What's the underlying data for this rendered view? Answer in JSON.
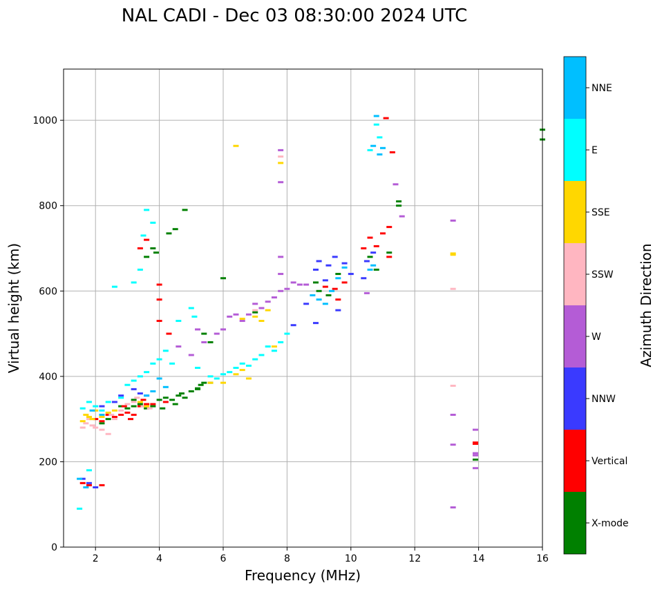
{
  "chart_data": {
    "type": "scatter",
    "title": "NAL CADI - Dec 03 08:30:00 2024 UTC",
    "xlabel": "Frequency (MHz)",
    "ylabel": "Virtual height (km)",
    "xlim": [
      1,
      16
    ],
    "ylim": [
      0,
      1120
    ],
    "xticks": [
      2,
      4,
      6,
      8,
      10,
      12,
      14,
      16
    ],
    "yticks": [
      0,
      200,
      400,
      600,
      800,
      1000
    ],
    "grid": true,
    "colorbar": {
      "label": "Azimuth Direction",
      "categories": [
        {
          "name": "X-mode",
          "color": "#008000"
        },
        {
          "name": "Vertical",
          "color": "#ff0000"
        },
        {
          "name": "NNW",
          "color": "#3a3aff"
        },
        {
          "name": "W",
          "color": "#b45cd6"
        },
        {
          "name": "SSW",
          "color": "#ffb6c1"
        },
        {
          "name": "SSE",
          "color": "#ffd700"
        },
        {
          "name": "E",
          "color": "#00ffff"
        },
        {
          "name": "NNE",
          "color": "#00bfff"
        }
      ]
    },
    "series": [
      {
        "name": "X-mode",
        "points": [
          [
            2.8,
            330
          ],
          [
            3.0,
            325
          ],
          [
            3.2,
            330
          ],
          [
            3.4,
            335
          ],
          [
            3.6,
            325
          ],
          [
            3.8,
            330
          ],
          [
            4.0,
            345
          ],
          [
            4.2,
            350
          ],
          [
            4.4,
            345
          ],
          [
            4.6,
            355
          ],
          [
            4.8,
            350
          ],
          [
            5.0,
            365
          ],
          [
            5.2,
            372
          ],
          [
            5.3,
            380
          ],
          [
            5.4,
            385
          ],
          [
            5.6,
            385
          ],
          [
            4.1,
            325
          ],
          [
            4.5,
            335
          ],
          [
            3.6,
            680
          ],
          [
            3.8,
            700
          ],
          [
            3.9,
            690
          ],
          [
            4.3,
            735
          ],
          [
            4.5,
            745
          ],
          [
            4.8,
            790
          ],
          [
            5.4,
            500
          ],
          [
            5.6,
            480
          ],
          [
            6.0,
            630
          ],
          [
            7.0,
            550
          ],
          [
            8.9,
            620
          ],
          [
            9.0,
            600
          ],
          [
            9.3,
            590
          ],
          [
            9.6,
            640
          ],
          [
            10.6,
            680
          ],
          [
            10.8,
            650
          ],
          [
            11.2,
            690
          ],
          [
            11.5,
            800
          ],
          [
            11.5,
            810
          ],
          [
            13.9,
            205
          ],
          [
            16.0,
            978
          ],
          [
            16.0,
            955
          ],
          [
            2.4,
            300
          ],
          [
            2.2,
            290
          ],
          [
            3.2,
            345
          ],
          [
            4.7,
            360
          ],
          [
            5.2,
            370
          ]
        ]
      },
      {
        "name": "Vertical",
        "points": [
          [
            1.6,
            150
          ],
          [
            1.8,
            145
          ],
          [
            2.2,
            145
          ],
          [
            2.0,
            300
          ],
          [
            2.2,
            295
          ],
          [
            2.4,
            310
          ],
          [
            2.6,
            305
          ],
          [
            2.8,
            310
          ],
          [
            3.0,
            315
          ],
          [
            3.2,
            310
          ],
          [
            3.4,
            330
          ],
          [
            3.6,
            335
          ],
          [
            3.8,
            335
          ],
          [
            3.5,
            345
          ],
          [
            3.4,
            700
          ],
          [
            3.6,
            720
          ],
          [
            4.0,
            615
          ],
          [
            4.0,
            580
          ],
          [
            4.0,
            530
          ],
          [
            4.2,
            340
          ],
          [
            4.3,
            500
          ],
          [
            9.2,
            610
          ],
          [
            9.5,
            605
          ],
          [
            9.8,
            620
          ],
          [
            9.6,
            580
          ],
          [
            10.4,
            700
          ],
          [
            10.6,
            725
          ],
          [
            10.8,
            705
          ],
          [
            11.1,
            1005
          ],
          [
            11.3,
            925
          ],
          [
            11.2,
            750
          ],
          [
            11.0,
            735
          ],
          [
            11.2,
            680
          ],
          [
            13.9,
            245
          ],
          [
            13.9,
            242
          ],
          [
            2.9,
            330
          ],
          [
            3.1,
            300
          ]
        ]
      },
      {
        "name": "NNW",
        "points": [
          [
            1.6,
            160
          ],
          [
            1.8,
            150
          ],
          [
            2.0,
            140
          ],
          [
            2.2,
            330
          ],
          [
            2.6,
            340
          ],
          [
            3.4,
            360
          ],
          [
            3.6,
            355
          ],
          [
            8.9,
            650
          ],
          [
            9.0,
            670
          ],
          [
            9.2,
            625
          ],
          [
            9.3,
            660
          ],
          [
            9.5,
            680
          ],
          [
            9.8,
            665
          ],
          [
            10.0,
            640
          ],
          [
            10.4,
            630
          ],
          [
            10.5,
            670
          ],
          [
            10.7,
            690
          ],
          [
            8.6,
            570
          ],
          [
            8.2,
            520
          ],
          [
            8.9,
            525
          ],
          [
            9.6,
            555
          ],
          [
            2.8,
            355
          ],
          [
            3.2,
            370
          ]
        ]
      },
      {
        "name": "W",
        "points": [
          [
            4.6,
            470
          ],
          [
            5.0,
            450
          ],
          [
            5.4,
            480
          ],
          [
            5.8,
            500
          ],
          [
            6.0,
            510
          ],
          [
            6.2,
            540
          ],
          [
            6.4,
            545
          ],
          [
            6.8,
            545
          ],
          [
            7.0,
            570
          ],
          [
            7.2,
            560
          ],
          [
            7.4,
            575
          ],
          [
            7.6,
            585
          ],
          [
            7.8,
            600
          ],
          [
            8.0,
            605
          ],
          [
            8.2,
            620
          ],
          [
            8.4,
            615
          ],
          [
            8.6,
            615
          ],
          [
            7.8,
            640
          ],
          [
            7.8,
            680
          ],
          [
            7.8,
            930
          ],
          [
            7.8,
            855
          ],
          [
            10.5,
            595
          ],
          [
            11.4,
            850
          ],
          [
            11.6,
            775
          ],
          [
            13.2,
            765
          ],
          [
            13.2,
            310
          ],
          [
            13.2,
            240
          ],
          [
            13.2,
            93
          ],
          [
            13.9,
            275
          ],
          [
            13.9,
            220
          ],
          [
            13.9,
            215
          ],
          [
            13.9,
            185
          ],
          [
            5.2,
            510
          ],
          [
            6.6,
            530
          ]
        ]
      },
      {
        "name": "SSW",
        "points": [
          [
            1.6,
            280
          ],
          [
            1.7,
            290
          ],
          [
            1.8,
            300
          ],
          [
            1.9,
            285
          ],
          [
            2.0,
            280
          ],
          [
            2.2,
            275
          ],
          [
            2.4,
            265
          ],
          [
            2.6,
            300
          ],
          [
            2.8,
            320
          ],
          [
            3.0,
            335
          ],
          [
            3.2,
            340
          ],
          [
            3.3,
            350
          ],
          [
            3.5,
            330
          ],
          [
            13.2,
            605
          ],
          [
            13.2,
            378
          ],
          [
            7.8,
            915
          ],
          [
            7.0,
            555
          ],
          [
            2.5,
            310
          ],
          [
            3.7,
            325
          ]
        ]
      },
      {
        "name": "SSE",
        "points": [
          [
            1.6,
            295
          ],
          [
            1.7,
            310
          ],
          [
            1.8,
            305
          ],
          [
            1.9,
            300
          ],
          [
            2.0,
            320
          ],
          [
            2.2,
            305
          ],
          [
            2.4,
            315
          ],
          [
            2.6,
            320
          ],
          [
            3.4,
            340
          ],
          [
            3.6,
            330
          ],
          [
            5.6,
            385
          ],
          [
            6.0,
            385
          ],
          [
            6.4,
            405
          ],
          [
            6.6,
            415
          ],
          [
            6.8,
            395
          ],
          [
            6.6,
            535
          ],
          [
            7.0,
            540
          ],
          [
            7.2,
            530
          ],
          [
            7.4,
            555
          ],
          [
            6.4,
            940
          ],
          [
            7.8,
            900
          ],
          [
            13.2,
            685
          ],
          [
            13.2,
            688
          ],
          [
            7.6,
            470
          ]
        ]
      },
      {
        "name": "E",
        "points": [
          [
            1.5,
            90
          ],
          [
            1.8,
            180
          ],
          [
            1.6,
            325
          ],
          [
            1.8,
            340
          ],
          [
            2.0,
            330
          ],
          [
            2.2,
            320
          ],
          [
            2.4,
            340
          ],
          [
            2.8,
            350
          ],
          [
            3.0,
            380
          ],
          [
            3.2,
            390
          ],
          [
            3.4,
            400
          ],
          [
            3.6,
            410
          ],
          [
            3.8,
            430
          ],
          [
            4.0,
            440
          ],
          [
            4.2,
            460
          ],
          [
            4.4,
            430
          ],
          [
            5.2,
            420
          ],
          [
            5.6,
            400
          ],
          [
            5.8,
            395
          ],
          [
            6.0,
            405
          ],
          [
            6.2,
            410
          ],
          [
            6.4,
            420
          ],
          [
            6.6,
            430
          ],
          [
            6.8,
            425
          ],
          [
            7.0,
            440
          ],
          [
            7.2,
            450
          ],
          [
            7.4,
            470
          ],
          [
            7.6,
            460
          ],
          [
            7.8,
            480
          ],
          [
            8.0,
            500
          ],
          [
            4.6,
            530
          ],
          [
            5.0,
            560
          ],
          [
            3.6,
            790
          ],
          [
            3.4,
            650
          ],
          [
            3.2,
            620
          ],
          [
            2.6,
            610
          ],
          [
            10.8,
            990
          ],
          [
            10.9,
            960
          ],
          [
            10.6,
            930
          ],
          [
            3.8,
            760
          ],
          [
            3.5,
            730
          ],
          [
            5.1,
            540
          ]
        ]
      },
      {
        "name": "NNE",
        "points": [
          [
            1.5,
            160
          ],
          [
            1.7,
            140
          ],
          [
            1.9,
            320
          ],
          [
            2.2,
            310
          ],
          [
            3.6,
            355
          ],
          [
            3.8,
            365
          ],
          [
            4.2,
            375
          ],
          [
            9.0,
            580
          ],
          [
            9.4,
            600
          ],
          [
            9.6,
            630
          ],
          [
            9.8,
            655
          ],
          [
            10.6,
            650
          ],
          [
            10.7,
            660
          ],
          [
            10.8,
            1010
          ],
          [
            10.7,
            940
          ],
          [
            10.9,
            920
          ],
          [
            11.0,
            935
          ],
          [
            8.8,
            590
          ],
          [
            9.2,
            570
          ],
          [
            4.0,
            395
          ]
        ]
      }
    ]
  }
}
